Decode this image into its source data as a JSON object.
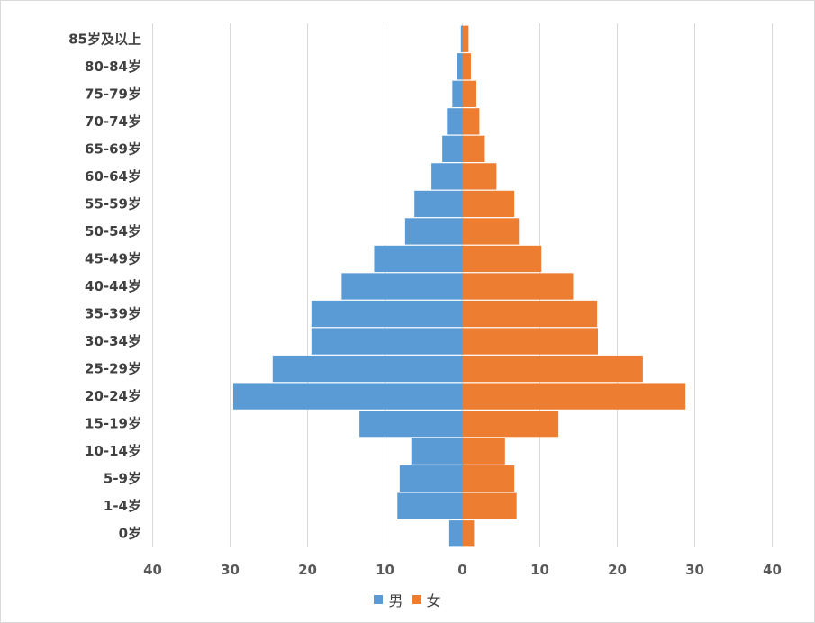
{
  "chart_data": {
    "type": "bar",
    "orientation": "horizontal",
    "layout": "population-pyramid",
    "categories": [
      "85岁及以上",
      "80-84岁",
      "75-79岁",
      "70-74岁",
      "65-69岁",
      "60-64岁",
      "55-59岁",
      "50-54岁",
      "45-49岁",
      "40-44岁",
      "35-39岁",
      "30-34岁",
      "25-29岁",
      "20-24岁",
      "15-19岁",
      "10-14岁",
      "5-9岁",
      "1-4岁",
      "0岁"
    ],
    "series": [
      {
        "name": "男",
        "color": "#5b9bd5",
        "side": "left",
        "values": [
          0.2,
          0.7,
          1.3,
          2.0,
          2.6,
          4.0,
          6.2,
          7.4,
          11.4,
          15.6,
          19.5,
          19.5,
          24.5,
          29.6,
          13.3,
          6.6,
          8.1,
          8.4,
          1.7
        ]
      },
      {
        "name": "女",
        "color": "#ed7d31",
        "side": "right",
        "values": [
          0.8,
          1.1,
          1.8,
          2.2,
          2.9,
          4.4,
          6.7,
          7.3,
          10.2,
          14.3,
          17.4,
          17.5,
          23.3,
          28.8,
          12.4,
          5.5,
          6.7,
          7.0,
          1.5
        ]
      }
    ],
    "xlim": [
      -40,
      40
    ],
    "xticks": [
      40,
      30,
      20,
      10,
      0,
      10,
      20,
      30,
      40
    ],
    "grid": true,
    "legend_position": "bottom"
  }
}
